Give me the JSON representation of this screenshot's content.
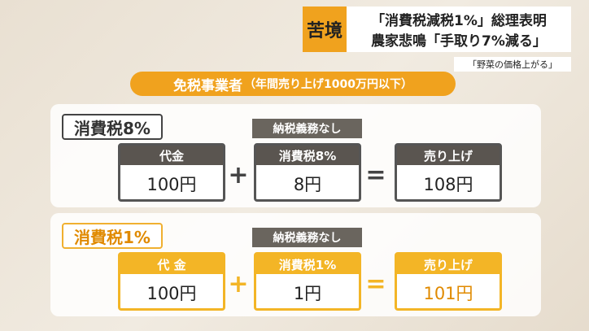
{
  "header": {
    "tag": "苦境",
    "headline": [
      "「消費税減税1%」総理表明",
      "農家悲鳴「手取り7%減る」"
    ],
    "subheadline": "「野菜の価格上がる」"
  },
  "title": "免税事業者",
  "title_note": "（年間売り上げ1000万円以下）",
  "panels": [
    {
      "label": "消費税8%",
      "note": "納税義務なし",
      "operators": [
        "+",
        "="
      ],
      "terms": [
        {
          "label": "代金",
          "value": "100円"
        },
        {
          "label": "消費税8%",
          "value": "8円"
        },
        {
          "label": "売り上げ",
          "value": "108円"
        }
      ]
    },
    {
      "label": "消費税1%",
      "note": "納税義務なし",
      "operators": [
        "+",
        "="
      ],
      "terms": [
        {
          "label": "代 金",
          "value": "100円"
        },
        {
          "label": "消費税1%",
          "value": "1円"
        },
        {
          "label": "売り上げ",
          "value": "101円"
        }
      ]
    }
  ]
}
